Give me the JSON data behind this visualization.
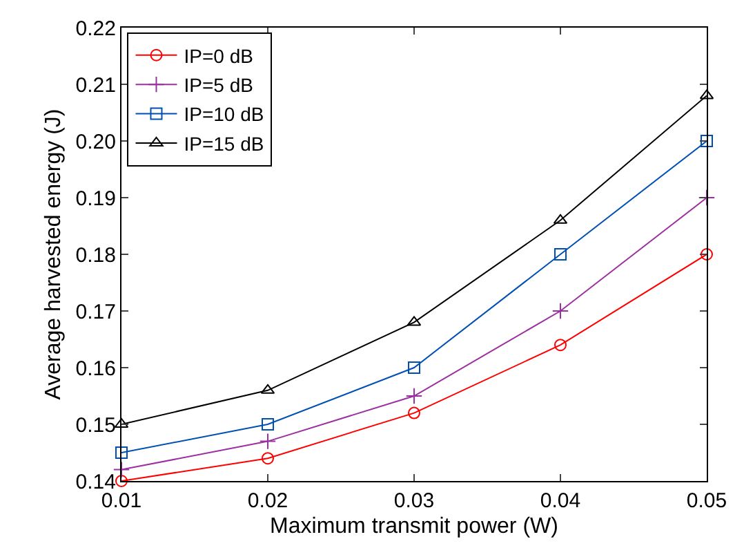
{
  "chart_data": {
    "type": "line",
    "xlabel": "Maximum transmit power (W)",
    "ylabel": "Average harvested energy (J)",
    "x": [
      0.01,
      0.02,
      0.03,
      0.04,
      0.05
    ],
    "series": [
      {
        "name": "IP=0 dB",
        "color": "#ff0000",
        "marker": "circle",
        "values": [
          0.14,
          0.144,
          0.152,
          0.164,
          0.18
        ]
      },
      {
        "name": "IP=5 dB",
        "color": "#9b30a0",
        "marker": "cross",
        "values": [
          0.142,
          0.147,
          0.155,
          0.17,
          0.19
        ]
      },
      {
        "name": "IP=10 dB",
        "color": "#0050b4",
        "marker": "square",
        "values": [
          0.145,
          0.15,
          0.16,
          0.18,
          0.2
        ]
      },
      {
        "name": "IP=15 dB",
        "color": "#000000",
        "marker": "triangle",
        "values": [
          0.15,
          0.156,
          0.168,
          0.186,
          0.208
        ]
      }
    ],
    "xlim": [
      0.01,
      0.05
    ],
    "xticks": [
      {
        "value": 0.01,
        "label": "0.01"
      },
      {
        "value": 0.02,
        "label": "0.02"
      },
      {
        "value": 0.03,
        "label": "0.03"
      },
      {
        "value": 0.04,
        "label": "0.04"
      },
      {
        "value": 0.05,
        "label": "0.05"
      }
    ],
    "ylim": [
      0.14,
      0.22
    ],
    "yticks": [
      {
        "value": 0.14,
        "label": "0.14"
      },
      {
        "value": 0.15,
        "label": "0.15"
      },
      {
        "value": 0.16,
        "label": "0.16"
      },
      {
        "value": 0.17,
        "label": "0.17"
      },
      {
        "value": 0.18,
        "label": "0.18"
      },
      {
        "value": 0.19,
        "label": "0.19"
      },
      {
        "value": 0.2,
        "label": "0.20"
      },
      {
        "value": 0.21,
        "label": "0.21"
      },
      {
        "value": 0.22,
        "label": "0.22"
      }
    ],
    "grid": false,
    "legend": "top left",
    "line_style": "solid"
  }
}
